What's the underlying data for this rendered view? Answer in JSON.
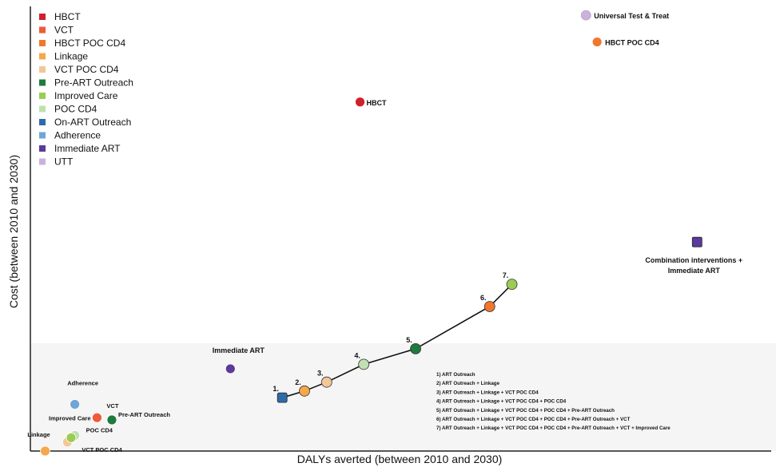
{
  "chart_data": {
    "type": "scatter",
    "title": "",
    "xlabel": "DALYs averted (between 2010 and 2030)",
    "ylabel": "Cost (between 2010 and 2030)",
    "grid": false,
    "legend_placement": "top-left",
    "legend": [
      {
        "name": "HBCT",
        "color": "#d0202a"
      },
      {
        "name": "VCT",
        "color": "#ee5a3a"
      },
      {
        "name": "HBCT POC CD4",
        "color": "#f0782c"
      },
      {
        "name": "Linkage",
        "color": "#f5a84a"
      },
      {
        "name": "VCT POC CD4",
        "color": "#f3c79a"
      },
      {
        "name": "Pre-ART Outreach",
        "color": "#1f7a3c"
      },
      {
        "name": "Improved Care",
        "color": "#9ccc54"
      },
      {
        "name": "POC CD4",
        "color": "#bfe0b0"
      },
      {
        "name": "On-ART Outreach",
        "color": "#2e6aa8"
      },
      {
        "name": "Adherence",
        "color": "#6fa6d6"
      },
      {
        "name": "Immediate ART",
        "color": "#5a3a9a"
      },
      {
        "name": "UTT",
        "color": "#c9b3dc"
      }
    ],
    "points": [
      {
        "label": "Universal Test & Treat",
        "series": "UTT",
        "x": 0.75,
        "y": 0.98
      },
      {
        "label": "HBCT POC CD4",
        "series": "HBCT POC CD4",
        "x": 0.765,
        "y": 0.92
      },
      {
        "label": "HBCT",
        "series": "HBCT",
        "x": 0.445,
        "y": 0.785
      },
      {
        "label": "Immediate ART",
        "series": "Immediate ART",
        "x": 0.27,
        "y": 0.185
      },
      {
        "label": "Adherence",
        "series": "Adherence",
        "x": 0.06,
        "y": 0.105
      },
      {
        "label": "VCT",
        "series": "VCT",
        "x": 0.09,
        "y": 0.075
      },
      {
        "label": "Pre-ART Outreach",
        "series": "Pre-ART Outreach",
        "x": 0.11,
        "y": 0.07
      },
      {
        "label": "POC CD4",
        "series": "POC CD4",
        "x": 0.06,
        "y": 0.035
      },
      {
        "label": "VCT POC CD4",
        "series": "VCT POC CD4",
        "x": 0.05,
        "y": 0.02
      },
      {
        "label": "Improved Care",
        "series": "Improved Care",
        "x": 0.055,
        "y": 0.03
      },
      {
        "label": "Linkage",
        "series": "Linkage",
        "x": 0.02,
        "y": 0.0
      },
      {
        "label": "Combination interventions + Immediate ART",
        "series": "Immediate ART",
        "x": 0.9,
        "y": 0.47
      }
    ],
    "frontier": {
      "series_colors": [
        "#2e6aa8",
        "#f5a84a",
        "#f3c79a",
        "#bfe0b0",
        "#1f7a3c",
        "#f0782c",
        "#9ccc54"
      ],
      "points": [
        {
          "label": "1.",
          "x": 0.34,
          "y": 0.12
        },
        {
          "label": "2.",
          "x": 0.37,
          "y": 0.135
        },
        {
          "label": "3.",
          "x": 0.4,
          "y": 0.155
        },
        {
          "label": "4.",
          "x": 0.45,
          "y": 0.195
        },
        {
          "label": "5.",
          "x": 0.52,
          "y": 0.23
        },
        {
          "label": "6.",
          "x": 0.62,
          "y": 0.325
        },
        {
          "label": "7.",
          "x": 0.65,
          "y": 0.375
        }
      ]
    },
    "frontier_notes": [
      "1) ART Outreach",
      "2) ART Outreach + Linkage",
      "3) ART Outreach + Linkage + VCT POC CD4",
      "4) ART Outreach + Linkage + VCT POC CD4 + POC CD4",
      "5) ART Outreach + Linkage + VCT POC CD4 + POC CD4 + Pre-ART Outreach",
      "6) ART Outreach + Linkage + VCT POC CD4 + POC CD4 + Pre-ART Outreach + VCT",
      "7) ART Outreach + Linkage + VCT POC CD4 + POC CD4 + Pre-ART Outreach + VCT + Improved Care"
    ]
  }
}
